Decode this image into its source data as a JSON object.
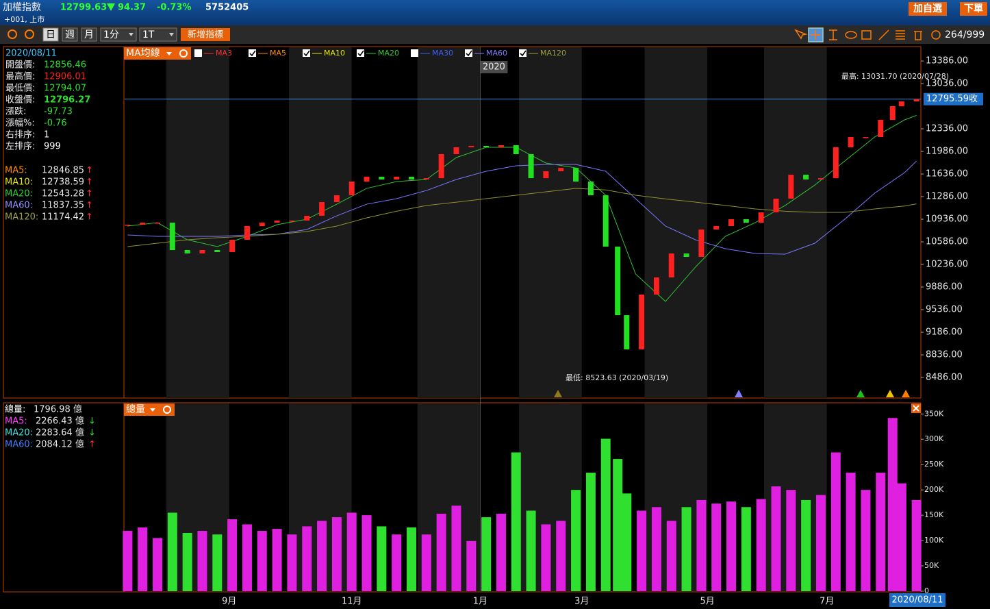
{
  "header": {
    "title": "加權指數",
    "price": "12799.63",
    "change": "94.37",
    "change_pct": "-0.73%",
    "volume": "5752405",
    "code": "+001, 上市",
    "buttons": [
      "加自選",
      "下單"
    ]
  },
  "toolbar": {
    "buttons": [
      "日",
      "週",
      "月",
      "1分",
      "1T"
    ],
    "selected": 0,
    "add_indicator": "新增指標",
    "count": "264/999"
  },
  "info_panel": {
    "date": "2020/08/11",
    "rows": [
      {
        "label": "開盤價:",
        "value": "12856.46",
        "color": "#30e030"
      },
      {
        "label": "最高價:",
        "value": "12906.01",
        "color": "#ff2020"
      },
      {
        "label": "最低價:",
        "value": "12794.07",
        "color": "#30e030"
      },
      {
        "label": "收盤價:",
        "value": "12796.27",
        "color": "#30e030"
      },
      {
        "label": "漲跌:",
        "value": "-97.73",
        "color": "#30e030"
      },
      {
        "label": "漲幅%:",
        "value": "-0.76",
        "color": "#30e030"
      },
      {
        "label": "右排序:",
        "value": "1",
        "color": "#ffffff"
      },
      {
        "label": "左排序:",
        "value": "999",
        "color": "#ffffff"
      }
    ],
    "ma_rows": [
      {
        "label": "MA5:",
        "value": "12846.85",
        "arrow": "↑",
        "color": "#ff8c00"
      },
      {
        "label": "MA10:",
        "value": "12738.59",
        "arrow": "↑",
        "color": "#e8e800"
      },
      {
        "label": "MA20:",
        "value": "12543.28",
        "arrow": "↑",
        "color": "#30d030"
      },
      {
        "label": "MA60:",
        "value": "11837.35",
        "arrow": "↑",
        "color": "#9090ff"
      },
      {
        "label": "MA120:",
        "value": "11174.42",
        "arrow": "↑",
        "color": "#a0a040"
      }
    ]
  },
  "volume_info": {
    "rows": [
      {
        "label": "總量:",
        "value": "1796.98 億",
        "arrow": "",
        "color": "#ffffff"
      },
      {
        "label": "MA5:",
        "value": "2266.43 億",
        "arrow": "↓",
        "color": "#ff40ff"
      },
      {
        "label": "MA20:",
        "value": "2283.64 億",
        "arrow": "↓",
        "color": "#40e0e0"
      },
      {
        "label": "MA60:",
        "value": "2084.12 億",
        "arrow": "↑",
        "color": "#4080ff"
      }
    ]
  },
  "ma_legend": {
    "title": "MA均線",
    "items": [
      {
        "label": "MA3",
        "checked": false,
        "color": "#ff3030"
      },
      {
        "label": "MA5",
        "checked": true,
        "color": "#ff8c00"
      },
      {
        "label": "MA10",
        "checked": true,
        "color": "#e8e800"
      },
      {
        "label": "MA20",
        "checked": true,
        "color": "#30d030"
      },
      {
        "label": "MA30",
        "checked": false,
        "color": "#4060ff"
      },
      {
        "label": "MA60",
        "checked": true,
        "color": "#8080ff"
      },
      {
        "label": "MA120",
        "checked": true,
        "color": "#a0a040"
      }
    ]
  },
  "volume_legend": {
    "title": "總量"
  },
  "chart_data": [
    {
      "type": "candlestick",
      "xlim": [
        -1,
        265
      ],
      "ylim": [
        8168,
        13609
      ],
      "yticks": [
        {
          "value": 13386,
          "label": "13386.00"
        },
        {
          "value": 13036,
          "label": "13036.00"
        },
        {
          "value": 12336,
          "label": "12336.00"
        },
        {
          "value": 11986,
          "label": "11986.00"
        },
        {
          "value": 11636,
          "label": "11636.00"
        },
        {
          "value": 11286,
          "label": "11286.00"
        },
        {
          "value": 10936,
          "label": "10936.00"
        },
        {
          "value": 10586,
          "label": "10586.00"
        },
        {
          "value": 10236,
          "label": "10236.00"
        },
        {
          "value": 9886,
          "label": "9886.00"
        },
        {
          "value": 9536,
          "label": "9536.00"
        },
        {
          "value": 9186,
          "label": "9186.00"
        },
        {
          "value": 8836,
          "label": "8836.00"
        },
        {
          "value": 8486,
          "label": "8486.00"
        }
      ],
      "x": [
        0,
        5,
        10,
        15,
        20,
        25,
        30,
        35,
        40,
        45,
        50,
        55,
        60,
        65,
        70,
        75,
        80,
        85,
        90,
        95,
        100,
        105,
        110,
        115,
        120,
        125,
        130,
        135,
        140,
        145,
        150,
        155,
        160,
        164,
        167,
        172,
        177,
        182,
        187,
        192,
        197,
        202,
        207,
        212,
        217,
        222,
        227,
        232,
        237,
        242,
        247,
        252,
        256,
        259,
        264
      ],
      "close": [
        10851,
        10883,
        10883,
        10459,
        10406,
        10459,
        10427,
        10618,
        10830,
        10883,
        10915,
        10915,
        10989,
        11201,
        11307,
        11519,
        11594,
        11551,
        11594,
        11551,
        11572,
        11944,
        12050,
        12071,
        12050,
        12082,
        11944,
        11572,
        11679,
        11731,
        11519,
        11307,
        10512,
        9451,
        8921,
        9770,
        10035,
        10406,
        10353,
        10777,
        10830,
        10936,
        10883,
        11042,
        11254,
        11625,
        11551,
        11572,
        12050,
        12209,
        12209,
        12474,
        12686,
        12760,
        12796
      ],
      "up_color": "#ff2020",
      "down_color": "#20e020",
      "series": [
        {
          "color": "#30c030",
          "x": [
            0,
            10,
            20,
            30,
            40,
            50,
            60,
            70,
            80,
            90,
            100,
            110,
            120,
            130,
            140,
            150,
            160,
            170,
            180,
            190,
            200,
            210,
            220,
            230,
            240,
            250,
            260,
            264
          ],
          "values": [
            10830,
            10883,
            10618,
            10512,
            10671,
            10851,
            10936,
            11169,
            11413,
            11519,
            11551,
            11891,
            12050,
            12050,
            11806,
            11731,
            11307,
            10088,
            9663,
            10194,
            10671,
            10883,
            11148,
            11466,
            11838,
            12209,
            12474,
            12543
          ]
        },
        {
          "color": "#7878ff",
          "x": [
            0,
            10,
            20,
            30,
            40,
            50,
            60,
            70,
            80,
            90,
            100,
            110,
            120,
            130,
            140,
            150,
            160,
            170,
            180,
            190,
            200,
            210,
            220,
            230,
            240,
            250,
            260,
            264
          ],
          "values": [
            10692,
            10671,
            10671,
            10671,
            10692,
            10703,
            10777,
            10989,
            11169,
            11254,
            11381,
            11551,
            11679,
            11763,
            11785,
            11785,
            11679,
            11254,
            10830,
            10618,
            10480,
            10406,
            10395,
            10565,
            10936,
            11339,
            11657,
            11837
          ]
        },
        {
          "color": "#909030",
          "x": [
            0,
            10,
            20,
            30,
            40,
            50,
            60,
            70,
            80,
            90,
            100,
            110,
            120,
            130,
            140,
            150,
            160,
            170,
            180,
            190,
            200,
            210,
            220,
            230,
            240,
            250,
            260,
            264
          ],
          "values": [
            10512,
            10565,
            10618,
            10650,
            10671,
            10703,
            10745,
            10830,
            10957,
            11060,
            11148,
            11200,
            11254,
            11307,
            11360,
            11413,
            11390,
            11307,
            11250,
            11201,
            11150,
            11095,
            11060,
            11042,
            11042,
            11095,
            11140,
            11174
          ]
        }
      ],
      "last_price": {
        "value": 12795.59,
        "label": "12795.59收"
      },
      "year_marker": {
        "x": 118,
        "label": "2020"
      },
      "annotations": [
        "最高: 13031.70 (2020/07/28)",
        "最低: 8523.63 (2020/03/19)"
      ]
    },
    {
      "type": "bar",
      "xlim": [
        -1,
        265
      ],
      "ylim": [
        0,
        372
      ],
      "yticks": [
        {
          "value": 350,
          "label": "350K"
        },
        {
          "value": 300,
          "label": "300K"
        },
        {
          "value": 250,
          "label": "250K"
        },
        {
          "value": 200,
          "label": "200K"
        },
        {
          "value": 150,
          "label": "150K"
        },
        {
          "value": 100,
          "label": "100K"
        },
        {
          "value": 50,
          "label": "50K"
        },
        0
      ],
      "xticks": [
        {
          "value": 34,
          "label": "9月"
        },
        {
          "value": 75,
          "label": "11月"
        },
        {
          "value": 118,
          "label": "1月"
        },
        {
          "value": 152,
          "label": "3月"
        },
        {
          "value": 194,
          "label": "5月"
        },
        {
          "value": 234,
          "label": "7月"
        }
      ],
      "x": [
        0,
        5,
        10,
        15,
        20,
        25,
        30,
        35,
        40,
        45,
        50,
        55,
        60,
        65,
        70,
        75,
        80,
        85,
        90,
        95,
        100,
        105,
        110,
        115,
        120,
        125,
        130,
        135,
        140,
        145,
        150,
        155,
        160,
        164,
        167,
        172,
        177,
        182,
        187,
        192,
        197,
        202,
        207,
        212,
        217,
        222,
        227,
        232,
        237,
        242,
        247,
        252,
        256,
        259,
        264
      ],
      "values": [
        119,
        126,
        105,
        155,
        115,
        119,
        112,
        142,
        132,
        119,
        123,
        112,
        128,
        139,
        146,
        155,
        150,
        128,
        112,
        126,
        112,
        153,
        169,
        99,
        146,
        153,
        274,
        159,
        132,
        139,
        200,
        234,
        301,
        261,
        193,
        159,
        166,
        139,
        166,
        180,
        173,
        177,
        166,
        182,
        207,
        200,
        180,
        190,
        274,
        234,
        200,
        234,
        342,
        213,
        180
      ],
      "up_color": "#e020e0",
      "down_color": "#30e030",
      "last_date": "2020/08/11"
    }
  ]
}
